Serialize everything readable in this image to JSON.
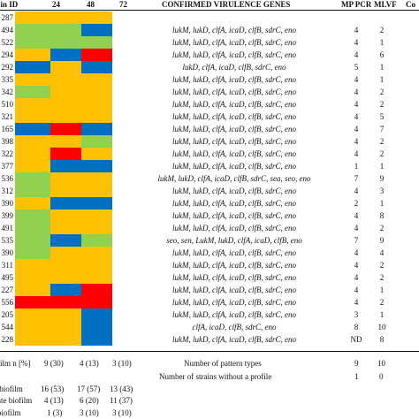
{
  "headers": {
    "strain_id": "ain ID",
    "t24": "24",
    "t48": "48",
    "t72": "72",
    "genes": "CONFIRMED VIRULENCE GENES",
    "mp_pcr": "MP PCR",
    "mlvf": "MLVF",
    "co": "Co"
  },
  "colors": {
    "O": "#FFC000",
    "G": "#92D050",
    "B": "#0070C0",
    "R": "#FF0000"
  },
  "rows": [
    {
      "id": "287",
      "c": [
        "O",
        "O",
        "O"
      ],
      "genes": "",
      "mp": "",
      "mlvf": ""
    },
    {
      "id": "494",
      "c": [
        "G",
        "G",
        "B"
      ],
      "genes": "lukM, lukD, clfA, icaD, clfB, sdrC, eno",
      "mp": "4",
      "mlvf": "2"
    },
    {
      "id": "522",
      "c": [
        "G",
        "G",
        "G"
      ],
      "genes": "lukM, lukD, clfA, icaD, clfB, sdrC, eno",
      "mp": "4",
      "mlvf": "1"
    },
    {
      "id": "294",
      "c": [
        "O",
        "B",
        "R"
      ],
      "genes": "lukM, lukD, clfA, icaD, clfB, sdrC, eno",
      "mp": "4",
      "mlvf": "6"
    },
    {
      "id": "292",
      "c": [
        "B",
        "O",
        "B"
      ],
      "genes": "lukD, clfA, icaD, clfB, sdrC, eno",
      "mp": "5",
      "mlvf": "1"
    },
    {
      "id": "335",
      "c": [
        "O",
        "O",
        "O"
      ],
      "genes": "lukM, lukD, clfA, icaD, clfB, sdrC, eno",
      "mp": "4",
      "mlvf": "1"
    },
    {
      "id": "342",
      "c": [
        "G",
        "O",
        "O"
      ],
      "genes": "lukM, lukD, clfA, icaD, clfB, sdrC, eno",
      "mp": "4",
      "mlvf": "2"
    },
    {
      "id": "510",
      "c": [
        "O",
        "O",
        "O"
      ],
      "genes": "lukM, lukD, clfA, icaD, clfB, sdrC, eno",
      "mp": "4",
      "mlvf": "2"
    },
    {
      "id": "321",
      "c": [
        "O",
        "O",
        "O"
      ],
      "genes": "lukM, lukD, clfA, icaD, clfB, sdrC, eno",
      "mp": "4",
      "mlvf": "5"
    },
    {
      "id": "165",
      "c": [
        "B",
        "R",
        "B"
      ],
      "genes": "lukM, lukD, clfA, icaD, clfB, sdrC, eno",
      "mp": "4",
      "mlvf": "7"
    },
    {
      "id": "398",
      "c": [
        "O",
        "O",
        "G"
      ],
      "genes": "lukM, lukD, clfA, icaD, clfB, sdrC, eno",
      "mp": "4",
      "mlvf": "2"
    },
    {
      "id": "322",
      "c": [
        "O",
        "R",
        "O"
      ],
      "genes": "lukM, lukD, clfA, icaD, clfB, sdrC, eno",
      "mp": "4",
      "mlvf": "2"
    },
    {
      "id": "377",
      "c": [
        "O",
        "B",
        "B"
      ],
      "genes": "lukM, lukD, clfA, icaD, clfB, sdrC, eno",
      "mp": "1",
      "mlvf": "1"
    },
    {
      "id": "536",
      "c": [
        "G",
        "O",
        "O"
      ],
      "genes": "lukM, lukD, clfA, icaD, clfB, sdrC, sea, seo, eno",
      "mp": "7",
      "mlvf": "9"
    },
    {
      "id": "312",
      "c": [
        "G",
        "O",
        "O"
      ],
      "genes": "lukM, lukD, clfA, icaD, clfB, sdrC, eno",
      "mp": "4",
      "mlvf": "3"
    },
    {
      "id": "390",
      "c": [
        "O",
        "B",
        "B"
      ],
      "genes": "lukM, lukD, clfA, icaD, clfB, sdrC, eno",
      "mp": "2",
      "mlvf": "1"
    },
    {
      "id": "399",
      "c": [
        "G",
        "O",
        "O"
      ],
      "genes": "lukM, lukD, clfA, icaD, clfB, sdrC, eno",
      "mp": "4",
      "mlvf": "8"
    },
    {
      "id": "491",
      "c": [
        "G",
        "O",
        "O"
      ],
      "genes": "lukM, lukD, clfA, icaD, clfB, sdrC, eno",
      "mp": "4",
      "mlvf": "2"
    },
    {
      "id": "535",
      "c": [
        "G",
        "B",
        "G"
      ],
      "genes": "seo, sen, LukM, lukD, clfA, icaD, clfB, eno",
      "mp": "7",
      "mlvf": "9"
    },
    {
      "id": "390",
      "c": [
        "G",
        "O",
        "O"
      ],
      "genes": "lukM, lukD, clfA, icaD, clfB, sdrC, eno",
      "mp": "4",
      "mlvf": "4"
    },
    {
      "id": "311",
      "c": [
        "O",
        "O",
        "O"
      ],
      "genes": "lukM, lukD, clfA, icaD, clfB, sdrC, eno",
      "mp": "4",
      "mlvf": "2"
    },
    {
      "id": "495",
      "c": [
        "O",
        "O",
        "O"
      ],
      "genes": "lukM, lukD, clfA, icaD, clfB, sdrC, eno",
      "mp": "4",
      "mlvf": "2"
    },
    {
      "id": "227",
      "c": [
        "O",
        "B",
        "R"
      ],
      "genes": "lukM, lukD, clfA, icaD, clfB, sdrC, eno",
      "mp": "4",
      "mlvf": "1"
    },
    {
      "id": "556",
      "c": [
        "R",
        "R",
        "R"
      ],
      "genes": "lukM, lukD, clfA, icaD, clfB, sdrC, eno",
      "mp": "4",
      "mlvf": "2"
    },
    {
      "id": "205",
      "c": [
        "O",
        "O",
        "B"
      ],
      "genes": "lukM, lukD, clfA, icaD, clfB, sdrC, eno",
      "mp": "3",
      "mlvf": "1"
    },
    {
      "id": "544",
      "c": [
        "O",
        "O",
        "B"
      ],
      "genes": "clfA, icaD, clfB, sdrC, eno",
      "mp": "8",
      "mlvf": "10"
    },
    {
      "id": "228",
      "c": [
        "O",
        "O",
        "B"
      ],
      "genes": "lukM, lukD, clfA, icaD, clfB, sdrC, eno",
      "mp": "ND",
      "mlvf": "8"
    }
  ],
  "footer": {
    "biofilm_label": "film n [%]",
    "biofilm_vals": [
      "9 (30)",
      "4 (13)",
      "3 (10)"
    ],
    "pattern_label": "Number of pattern types",
    "pattern_mp": "9",
    "pattern_mlvf": "10",
    "noprofile_label": "Number of strains without a profile",
    "noprofile_mp": "1",
    "noprofile_mlvf": "0",
    "strong_label": " biofilm",
    "strong_vals": [
      "16 (53)",
      "17 (57)",
      "13 (43)"
    ],
    "moderate_label": "ate biofilm",
    "moderate_vals": [
      "4 (13)",
      "6 (20)",
      "11 (37)"
    ],
    "weak_label": "biofilm",
    "weak_vals": [
      "1 (3)",
      "3 (10)",
      "3 (10)"
    ]
  }
}
